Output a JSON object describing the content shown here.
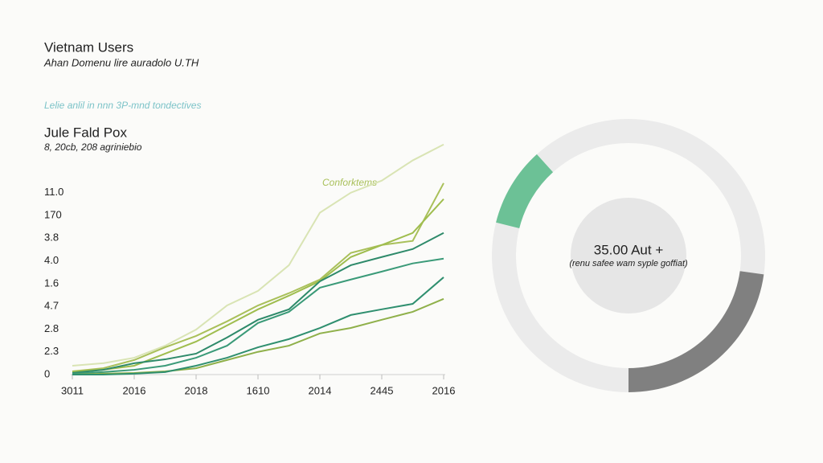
{
  "header": {
    "title": "Vietnam Users",
    "subtitle": "Ahan Domenu lire auradolo U.TH",
    "note": "Lelie anlil in nnn 3P-mnd tondectives"
  },
  "chart_data": [
    {
      "type": "line",
      "title": "Jule Fald Pox",
      "subtitle": "8, 20cb, 208 agriniebio",
      "annotation": "Conforktems",
      "categories": [
        "3011",
        null,
        "2016",
        null,
        "2018",
        null,
        "1610",
        null,
        "2014",
        null,
        "2445",
        null,
        "2016"
      ],
      "ylim": [
        0,
        10.5
      ],
      "yticks": [
        0,
        {
          "value": 1,
          "label": "2.3"
        },
        {
          "value": 2,
          "label": "2.8"
        },
        {
          "value": 3,
          "label": "4.7"
        },
        {
          "value": 4,
          "label": "1.6"
        },
        {
          "value": 5,
          "label": "4.0"
        },
        {
          "value": 6,
          "label": "3.8"
        },
        {
          "value": 7,
          "label": "170"
        },
        {
          "value": 8,
          "label": "11.0"
        }
      ],
      "series": [
        {
          "color": "#d9e4b4",
          "values": [
            0.39,
            0.5,
            0.74,
            1.27,
            1.98,
            3.04,
            3.68,
            4.81,
            7.12,
            8.0,
            8.53,
            9.42,
            10.12
          ]
        },
        {
          "color": "#a9c05a",
          "values": [
            0.14,
            0.28,
            0.64,
            1.2,
            1.7,
            2.34,
            3.04,
            3.58,
            4.18,
            5.35,
            5.7,
            5.88,
            8.42
          ]
        },
        {
          "color": "#9fbd4e",
          "values": [
            0.14,
            0.21,
            0.39,
            0.92,
            1.45,
            2.16,
            2.87,
            3.47,
            4.11,
            5.17,
            5.7,
            6.23,
            7.72
          ]
        },
        {
          "color": "#2e8a6a",
          "values": [
            0.07,
            0.21,
            0.5,
            0.67,
            0.92,
            1.63,
            2.41,
            2.87,
            4.1,
            4.81,
            5.17,
            5.52,
            6.23
          ]
        },
        {
          "color": "#3a9a78",
          "values": [
            0.04,
            0.11,
            0.21,
            0.39,
            0.74,
            1.27,
            2.27,
            2.76,
            3.82,
            4.18,
            4.53,
            4.89,
            5.1
          ]
        },
        {
          "color": "#8fb04a",
          "values": [
            0.0,
            0.04,
            0.07,
            0.14,
            0.28,
            0.64,
            1.0,
            1.27,
            1.81,
            2.05,
            2.41,
            2.76,
            3.33
          ]
        },
        {
          "color": "#2f8f6f",
          "values": [
            0.0,
            0.0,
            0.04,
            0.11,
            0.39,
            0.74,
            1.2,
            1.56,
            2.05,
            2.62,
            2.87,
            3.11,
            4.28
          ]
        }
      ]
    },
    {
      "type": "pie",
      "center_value": "35.00 Aut +",
      "center_note": "(renu safee wam syple goffiat)",
      "values": [
        27.2,
        22.8,
        28.9,
        9.4,
        11.7
      ],
      "colors": [
        "#ebebeb",
        "#808080",
        "#ebebeb",
        "#6cc196",
        "#ebebeb"
      ]
    }
  ]
}
